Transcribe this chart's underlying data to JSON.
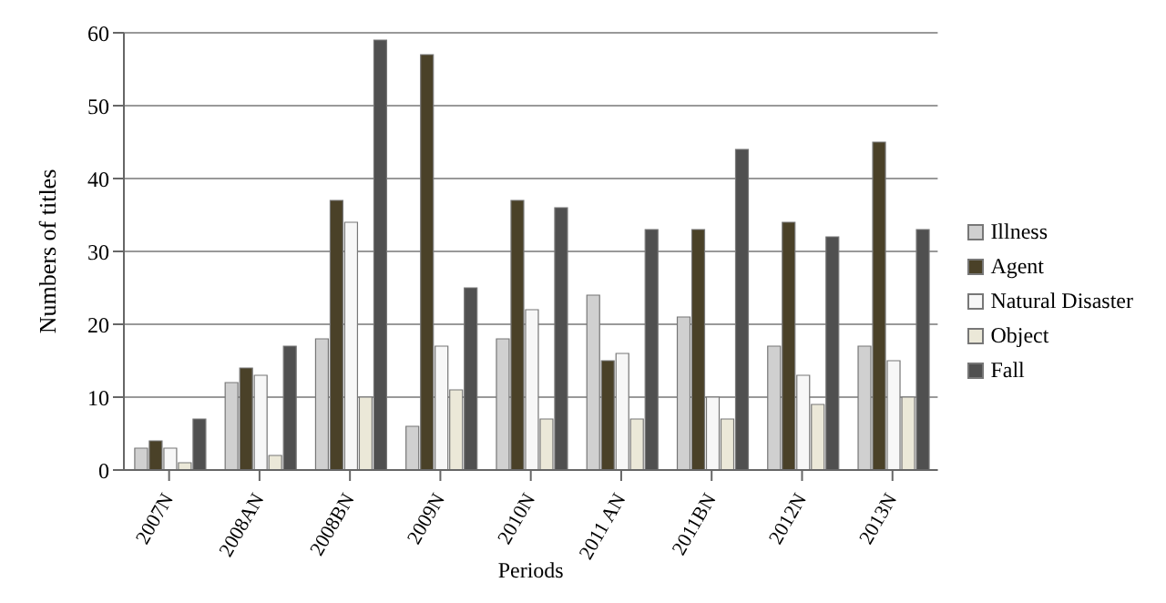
{
  "chart_data": {
    "type": "bar",
    "xlabel": "Periods",
    "ylabel": "Numbers of titles",
    "categories": [
      "2007N",
      "2008AN",
      "2008BN",
      "2009N",
      "2010N",
      "2011 AN",
      "2011BN",
      "2012N",
      "2013N"
    ],
    "series": [
      {
        "name": "Illness",
        "color": "#d0d0d0",
        "values": [
          3,
          12,
          18,
          6,
          18,
          24,
          21,
          17,
          17
        ]
      },
      {
        "name": "Agent",
        "color": "#4a4128",
        "values": [
          4,
          14,
          37,
          57,
          37,
          15,
          33,
          34,
          45
        ]
      },
      {
        "name": "Natural Disaster",
        "color": "#f7f7f7",
        "values": [
          3,
          13,
          34,
          17,
          22,
          16,
          10,
          13,
          15
        ]
      },
      {
        "name": "Object",
        "color": "#ebe8d8",
        "values": [
          1,
          2,
          10,
          11,
          7,
          7,
          7,
          9,
          10
        ]
      },
      {
        "name": "Fall",
        "color": "#505050",
        "values": [
          7,
          17,
          59,
          25,
          36,
          33,
          44,
          32,
          33
        ]
      }
    ],
    "ylim": [
      0,
      60
    ],
    "yticks": [
      0,
      10,
      20,
      30,
      40,
      50,
      60
    ],
    "grid": "y",
    "legend": "right"
  }
}
